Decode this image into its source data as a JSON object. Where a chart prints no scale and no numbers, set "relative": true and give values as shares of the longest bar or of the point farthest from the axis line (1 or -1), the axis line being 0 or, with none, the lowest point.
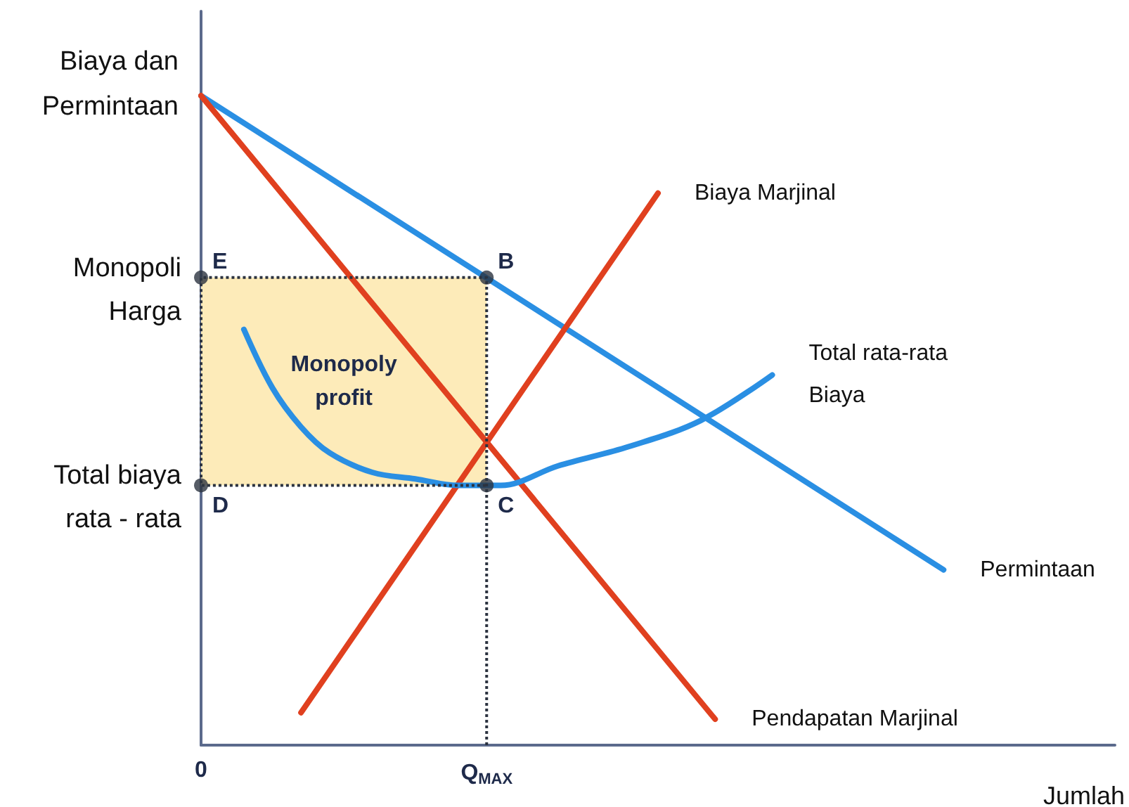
{
  "chart_data": {
    "type": "line",
    "relative": true,
    "ylabel": "Biaya dan\nPermintaan",
    "xlabel": "Jumlah",
    "categories": [
      "0",
      null,
      null,
      null,
      null,
      null,
      null,
      null,
      null,
      null,
      null,
      null,
      null,
      null,
      null,
      null,
      null,
      null,
      null,
      null,
      "Q$_{MAX}$",
      null,
      null,
      null,
      null,
      null,
      null,
      null,
      null,
      null,
      null,
      null,
      null,
      null,
      null,
      null,
      null,
      null,
      null,
      null,
      null,
      null,
      null,
      null,
      null,
      null,
      null,
      null,
      null,
      null,
      null,
      null,
      null,
      null,
      null,
      null,
      null,
      null,
      null,
      null,
      null,
      null,
      null,
      null,
      null
    ],
    "annotations": [
      {
        "text": "Monopoli\nHarga",
        "x": "0",
        "y": 0.72
      },
      {
        "text": "Total biaya\nrata - rata",
        "x": "0",
        "y": 0.4
      },
      {
        "text": "E",
        "x": "0",
        "y": 0.72
      },
      {
        "text": "B",
        "x": "Q$_{MAX}$",
        "y": 0.72
      },
      {
        "text": "C",
        "x": "Q$_{MAX}$",
        "y": 0.4
      },
      {
        "text": "D",
        "x": "0",
        "y": 0.4
      }
    ],
    "series": [
      {
        "type": "scatter",
        "color": "#2c3340",
        "marker": "circle",
        "x": [
          "0",
          "Q$_{MAX}$",
          "Q$_{MAX}$",
          "0"
        ],
        "values": [
          0.72,
          0.72,
          0.4,
          0.4
        ]
      },
      {
        "type": "line",
        "color": "#2c3340",
        "line_style": "dotted",
        "x": [
          "Q$_{MAX}$",
          "Q$_{MAX}$",
          "0",
          "0",
          "Q$_{MAX}$"
        ],
        "values": [
          0,
          0.72,
          0.72,
          0.4,
          0.4
        ]
      },
      {
        "name": "Permintaan",
        "color": "#2a8fe3",
        "values": [
          1,
          null,
          null,
          null,
          null,
          null,
          null,
          null,
          null,
          null,
          null,
          null,
          null,
          null,
          null,
          null,
          null,
          null,
          null,
          null,
          null,
          null,
          null,
          null,
          null,
          null,
          null,
          null,
          null,
          null,
          null,
          null,
          null,
          null,
          null,
          null,
          null,
          null,
          null,
          null,
          null,
          null,
          null,
          null,
          null,
          null,
          null,
          null,
          null,
          null,
          null,
          null,
          0.27,
          null,
          null,
          null,
          null,
          null,
          null,
          null,
          null,
          null,
          null,
          null,
          null
        ]
      },
      {
        "name": "Pendapatan Marjinal",
        "color": "#e0401f",
        "values": [
          1,
          null,
          null,
          null,
          null,
          null,
          null,
          null,
          null,
          null,
          null,
          null,
          null,
          null,
          null,
          null,
          null,
          null,
          null,
          null,
          null,
          null,
          null,
          null,
          null,
          null,
          null,
          null,
          null,
          null,
          null,
          null,
          null,
          null,
          null,
          null,
          0.04,
          null,
          null,
          null,
          null,
          null,
          null,
          null,
          null,
          null,
          null,
          null,
          null,
          null,
          null,
          null,
          null,
          null,
          null,
          null,
          null,
          null,
          null,
          null,
          null,
          null,
          null,
          null,
          null
        ]
      },
      {
        "name": "Biaya Marjinal",
        "color": "#e0401f",
        "values": [
          null,
          null,
          null,
          null,
          null,
          null,
          null,
          0.05,
          null,
          null,
          null,
          null,
          null,
          null,
          null,
          null,
          null,
          null,
          null,
          null,
          null,
          null,
          null,
          null,
          null,
          null,
          null,
          null,
          null,
          null,
          null,
          null,
          0.85,
          null,
          null,
          null,
          null,
          null,
          null,
          null,
          null,
          null,
          null,
          null,
          null,
          null,
          null,
          null,
          null,
          null,
          null,
          null,
          null,
          null,
          null,
          null,
          null,
          null,
          null,
          null,
          null,
          null,
          null,
          null,
          null
        ]
      },
      {
        "name": "Total rata-rata\nBiaya",
        "color": "#2a8fe3",
        "values": [
          null,
          null,
          null,
          0.64,
          null,
          0.55,
          null,
          0.49,
          null,
          0.45,
          null,
          null,
          0.42,
          null,
          null,
          0.41,
          null,
          null,
          0.4,
          null,
          null,
          0.4,
          null,
          null,
          null,
          0.43,
          null,
          null,
          null,
          null,
          0.46,
          null,
          null,
          null,
          null,
          0.5,
          null,
          null,
          null,
          null,
          0.57,
          null,
          null,
          null,
          null,
          null,
          null,
          null,
          null,
          null,
          null,
          null,
          null,
          null,
          null,
          null,
          null,
          null,
          null,
          null,
          null,
          null,
          null,
          null,
          null
        ]
      },
      {
        "name": "Monopoly\nprofit",
        "type": "area",
        "color": "#fdebb9",
        "x": [
          "0",
          "Q$_{MAX}$",
          "Q$_{MAX}$",
          "0"
        ],
        "values": [
          0.72,
          0.72,
          0.4,
          0.4
        ]
      }
    ],
    "grid": false,
    "line_style": "solid"
  }
}
